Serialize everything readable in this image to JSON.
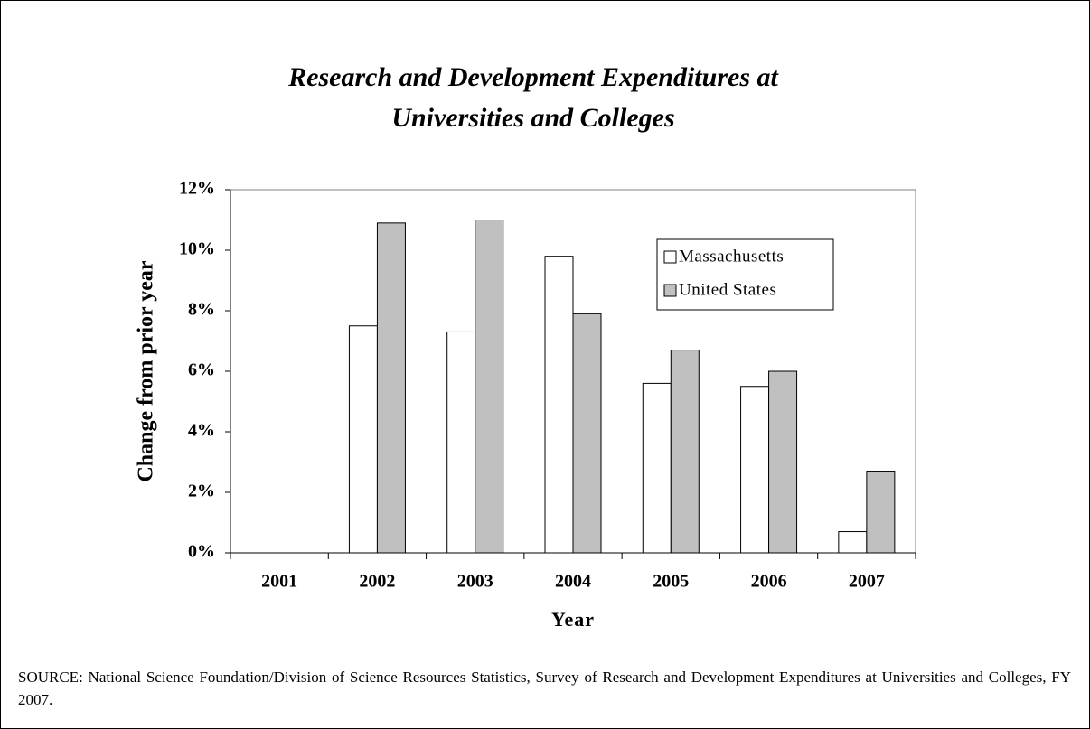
{
  "chart_data": {
    "type": "bar",
    "title": [
      "Research and Development Expenditures at",
      "Universities and Colleges"
    ],
    "x_label": "Year",
    "y_label": "Change from prior year",
    "categories": [
      "2001",
      "2002",
      "2003",
      "2004",
      "2005",
      "2006",
      "2007"
    ],
    "series": [
      {
        "name": "Massachusetts",
        "color": "#ffffff",
        "values": [
          null,
          7.5,
          7.3,
          9.8,
          5.6,
          5.5,
          0.7
        ]
      },
      {
        "name": "United States",
        "color": "#c0c0c0",
        "values": [
          null,
          10.9,
          11.0,
          7.9,
          6.7,
          6.0,
          2.7
        ]
      }
    ],
    "ylim": [
      0,
      12
    ],
    "yticks": [
      {
        "value": 0,
        "label": "0%"
      },
      {
        "value": 2,
        "label": "2%"
      },
      {
        "value": 4,
        "label": "4%"
      },
      {
        "value": 6,
        "label": "6%"
      },
      {
        "value": 8,
        "label": "8%"
      },
      {
        "value": 10,
        "label": "10%"
      },
      {
        "value": 12,
        "label": "12%"
      }
    ],
    "legend": "upper right",
    "grid": false,
    "source": "SOURCE: National Science Foundation/Division of Science Resources Statistics, Survey of Research and Development Expenditures at Universities and Colleges, FY 2007."
  }
}
